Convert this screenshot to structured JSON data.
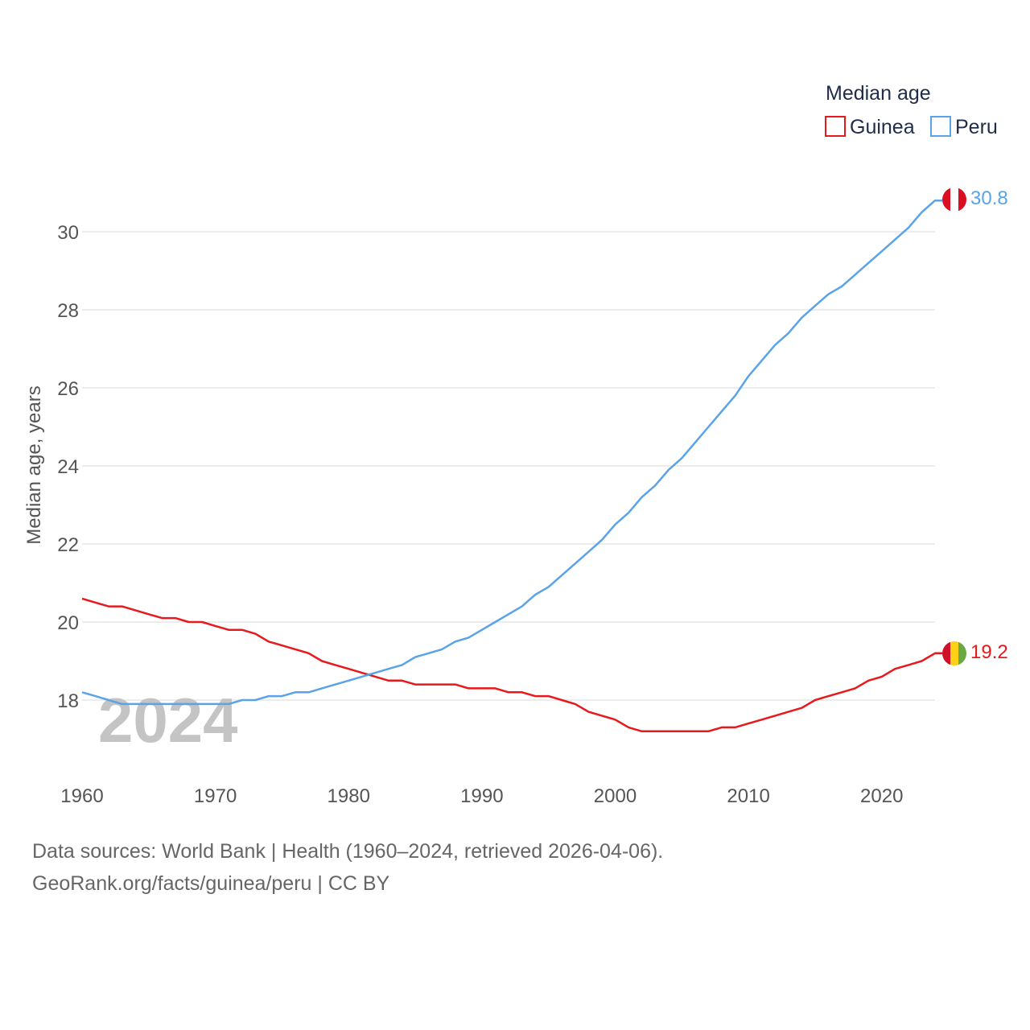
{
  "chart_data": {
    "type": "line",
    "legend_title": "Median age",
    "ylabel": "Median age, years",
    "xlabel": "",
    "year_label": "2024",
    "x_range": [
      1960,
      2024
    ],
    "ylim": [
      16.8,
      31.4
    ],
    "x_ticks": [
      1960,
      1970,
      1980,
      1990,
      2000,
      2010,
      2020
    ],
    "y_ticks": [
      18,
      20,
      22,
      24,
      26,
      28,
      30
    ],
    "x": [
      1960,
      1961,
      1962,
      1963,
      1964,
      1965,
      1966,
      1967,
      1968,
      1969,
      1970,
      1971,
      1972,
      1973,
      1974,
      1975,
      1976,
      1977,
      1978,
      1979,
      1980,
      1981,
      1982,
      1983,
      1984,
      1985,
      1986,
      1987,
      1988,
      1989,
      1990,
      1991,
      1992,
      1993,
      1994,
      1995,
      1996,
      1997,
      1998,
      1999,
      2000,
      2001,
      2002,
      2003,
      2004,
      2005,
      2006,
      2007,
      2008,
      2009,
      2010,
      2011,
      2012,
      2013,
      2014,
      2015,
      2016,
      2017,
      2018,
      2019,
      2020,
      2021,
      2022,
      2023,
      2024
    ],
    "series": [
      {
        "name": "Guinea",
        "color": "#e8191c",
        "end_label": "19.2",
        "flag": "guinea",
        "values": [
          20.6,
          20.5,
          20.4,
          20.4,
          20.3,
          20.2,
          20.1,
          20.1,
          20.0,
          20.0,
          19.9,
          19.8,
          19.8,
          19.7,
          19.5,
          19.4,
          19.3,
          19.2,
          19.0,
          18.9,
          18.8,
          18.7,
          18.6,
          18.5,
          18.5,
          18.4,
          18.4,
          18.4,
          18.4,
          18.3,
          18.3,
          18.3,
          18.2,
          18.2,
          18.1,
          18.1,
          18.0,
          17.9,
          17.7,
          17.6,
          17.5,
          17.3,
          17.2,
          17.2,
          17.2,
          17.2,
          17.2,
          17.2,
          17.3,
          17.3,
          17.4,
          17.5,
          17.6,
          17.7,
          17.8,
          18.0,
          18.1,
          18.2,
          18.3,
          18.5,
          18.6,
          18.8,
          18.9,
          19.0,
          19.2
        ]
      },
      {
        "name": "Peru",
        "color": "#5aa3e8",
        "end_label": "30.8",
        "flag": "peru",
        "values": [
          18.2,
          18.1,
          18.0,
          17.9,
          17.9,
          17.9,
          17.9,
          17.9,
          17.9,
          17.9,
          17.9,
          17.9,
          18.0,
          18.0,
          18.1,
          18.1,
          18.2,
          18.2,
          18.3,
          18.4,
          18.5,
          18.6,
          18.7,
          18.8,
          18.9,
          19.1,
          19.2,
          19.3,
          19.5,
          19.6,
          19.8,
          20.0,
          20.2,
          20.4,
          20.7,
          20.9,
          21.2,
          21.5,
          21.8,
          22.1,
          22.5,
          22.8,
          23.2,
          23.5,
          23.9,
          24.2,
          24.6,
          25.0,
          25.4,
          25.8,
          26.3,
          26.7,
          27.1,
          27.4,
          27.8,
          28.1,
          28.4,
          28.6,
          28.9,
          29.2,
          29.5,
          29.8,
          30.1,
          30.5,
          30.8
        ]
      }
    ]
  },
  "footer": {
    "sources": "Data sources: World Bank | Health (1960–2024, retrieved 2026-04-06).",
    "credit": "GeoRank.org/facts/guinea/peru | CC BY"
  }
}
